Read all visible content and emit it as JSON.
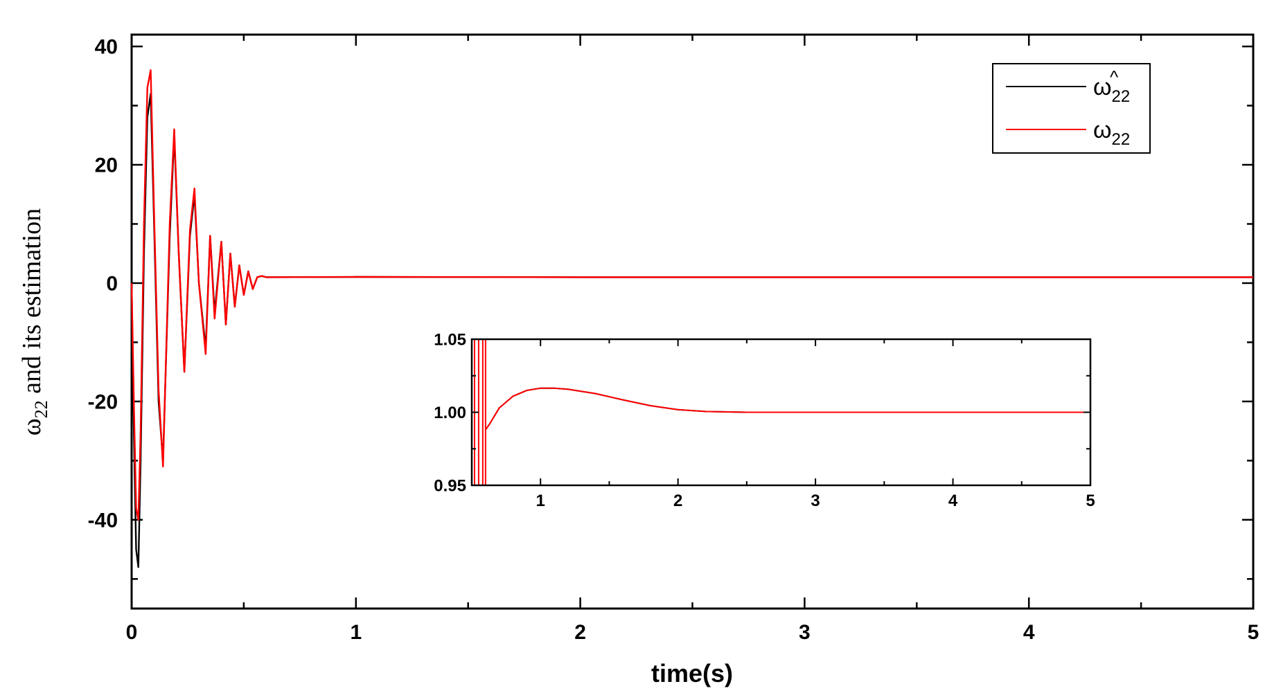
{
  "chart_data": [
    {
      "type": "line",
      "xlabel": "time(s)",
      "ylabel_symbol": "ω",
      "ylabel_sub": "22",
      "ylabel_rest": " and its estimation",
      "xlim": [
        0,
        5
      ],
      "ylim": [
        -55,
        42
      ],
      "xticks": [
        0,
        1,
        2,
        3,
        4,
        5
      ],
      "yticks": [
        -40,
        -20,
        0,
        20,
        40
      ],
      "grid": false,
      "legend_position": "top-right",
      "series": [
        {
          "name_symbol": "ω",
          "name_sub": "22",
          "name_accent": "^",
          "color": "#000000",
          "x": [
            0,
            0.01,
            0.02,
            0.03,
            0.04,
            0.055,
            0.07,
            0.085,
            0.1,
            0.12,
            0.14,
            0.17,
            0.19,
            0.21,
            0.235,
            0.26,
            0.28,
            0.3,
            0.33,
            0.35,
            0.37,
            0.4,
            0.42,
            0.44,
            0.46,
            0.48,
            0.5,
            0.52,
            0.54,
            0.56,
            0.58,
            0.6,
            1.0,
            1.5,
            2.0,
            3.0,
            4.0,
            5.0
          ],
          "y": [
            0,
            -25,
            -45,
            -48,
            -30,
            5,
            28,
            32,
            10,
            -20,
            -30,
            8,
            25,
            5,
            -15,
            8,
            15,
            0,
            -11,
            8,
            -5,
            7,
            -7,
            5,
            -4,
            3,
            -2,
            2,
            -1,
            1,
            1.2,
            1.0,
            1.05,
            1.02,
            1.0,
            1.0,
            1.0,
            1.0
          ]
        },
        {
          "name_symbol": "ω",
          "name_sub": "22",
          "color": "#ff0000",
          "x": [
            0,
            0.01,
            0.02,
            0.03,
            0.04,
            0.055,
            0.07,
            0.085,
            0.1,
            0.12,
            0.14,
            0.17,
            0.19,
            0.21,
            0.235,
            0.26,
            0.28,
            0.3,
            0.33,
            0.35,
            0.37,
            0.4,
            0.42,
            0.44,
            0.46,
            0.48,
            0.5,
            0.52,
            0.54,
            0.56,
            0.58,
            0.6,
            1.0,
            1.5,
            2.0,
            3.0,
            4.0,
            5.0
          ],
          "y": [
            0,
            -20,
            -38,
            -40,
            -25,
            10,
            33,
            36,
            12,
            -18,
            -31,
            10,
            26,
            5,
            -15,
            9,
            16,
            0,
            -12,
            8,
            -6,
            7,
            -7,
            5,
            -4,
            3,
            -2,
            2,
            -1,
            1,
            1.2,
            1.0,
            1.05,
            1.02,
            1.0,
            1.0,
            1.0,
            1.0
          ]
        }
      ]
    },
    {
      "type": "line",
      "role": "inset",
      "xlim": [
        0.5,
        5
      ],
      "ylim": [
        0.95,
        1.05
      ],
      "xticks": [
        1,
        2,
        3,
        4,
        5
      ],
      "yticks": [
        "0.95",
        "1.00",
        "1.05"
      ],
      "grid": false,
      "series": [
        {
          "color": "#000000",
          "x": [
            0.6,
            0.63,
            0.7,
            0.8,
            0.9,
            1.0,
            1.1,
            1.2,
            1.4,
            1.6,
            1.8,
            2.0,
            2.2,
            2.5,
            3.0,
            4.0,
            5.0
          ],
          "y": [
            0.988,
            0.992,
            1.003,
            1.011,
            1.015,
            1.0165,
            1.0165,
            1.0158,
            1.0128,
            1.0085,
            1.0045,
            1.0018,
            1.0005,
            1.0,
            1.0,
            1.0,
            1.0
          ]
        },
        {
          "color": "#ff0000",
          "x": [
            0.6,
            0.63,
            0.7,
            0.8,
            0.9,
            1.0,
            1.1,
            1.2,
            1.4,
            1.6,
            1.8,
            2.0,
            2.2,
            2.5,
            3.0,
            4.0,
            5.0
          ],
          "y": [
            0.988,
            0.992,
            1.003,
            1.011,
            1.015,
            1.0165,
            1.0165,
            1.0158,
            1.0128,
            1.0085,
            1.0045,
            1.0018,
            1.0005,
            1.0,
            1.0,
            1.0,
            1.0
          ]
        }
      ]
    }
  ]
}
